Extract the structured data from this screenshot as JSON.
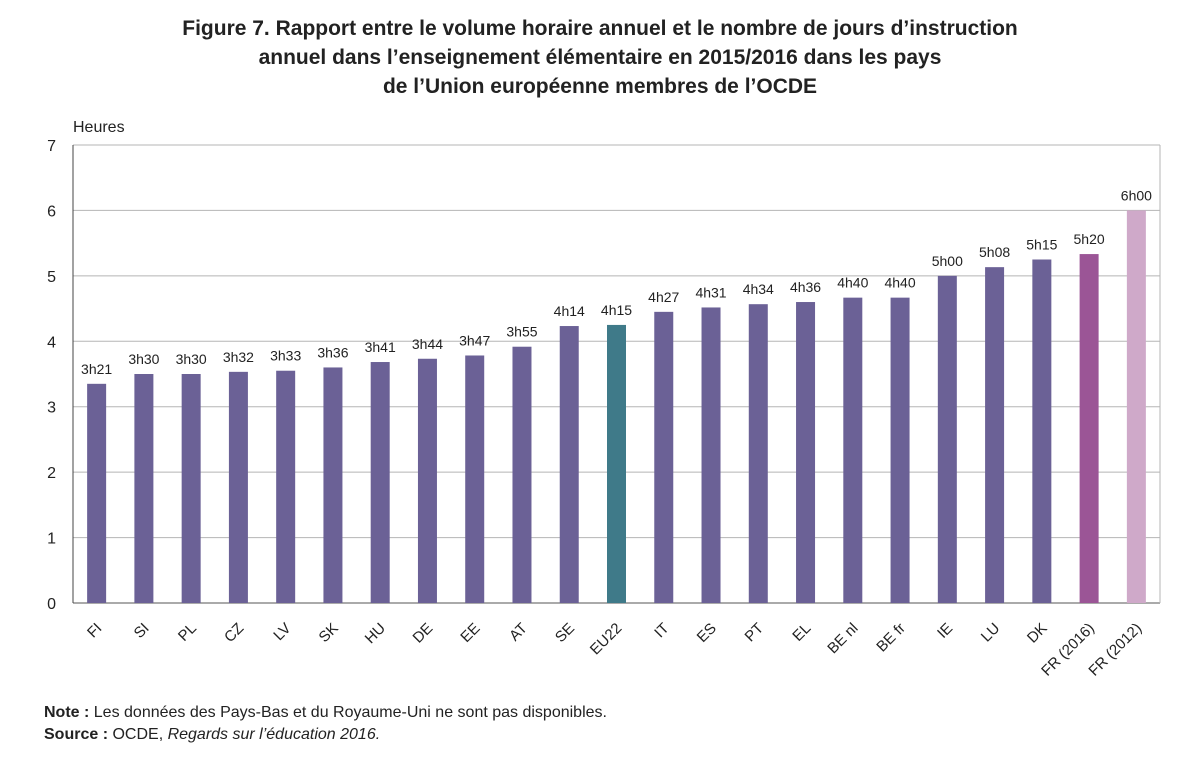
{
  "title_lines": [
    "Figure 7.  Rapport entre le volume horaire annuel et le nombre de jours d’instruction",
    "annuel dans l’enseignement élémentaire en 2015/2016 dans les pays",
    "de l’Union européenne membres de l’OCDE"
  ],
  "notes": {
    "note_label": "Note :",
    "note_text": " Les données des Pays-Bas et du Royaume-Uni ne sont pas disponibles.",
    "source_label": "Source :",
    "source_text": " OCDE, ",
    "source_title": "Regards sur l’éducation 2016."
  },
  "chart_data": {
    "type": "bar",
    "ylabel": "Heures",
    "ylim": [
      0,
      7
    ],
    "yticks": [
      0,
      1,
      2,
      3,
      4,
      5,
      6,
      7
    ],
    "grid": true,
    "categories": [
      "FI",
      "SI",
      "PL",
      "CZ",
      "LV",
      "SK",
      "HU",
      "DE",
      "EE",
      "AT",
      "SE",
      "EU22",
      "IT",
      "ES",
      "PT",
      "EL",
      "BE nl",
      "BE fr",
      "IE",
      "LU",
      "DK",
      "FR (2016)",
      "FR (2012)"
    ],
    "values": [
      3.35,
      3.5,
      3.5,
      3.533,
      3.55,
      3.6,
      3.683,
      3.733,
      3.783,
      3.917,
      4.233,
      4.25,
      4.45,
      4.517,
      4.567,
      4.6,
      4.667,
      4.667,
      5.0,
      5.133,
      5.25,
      5.333,
      6.0
    ],
    "data_labels": [
      "3h21",
      "3h30",
      "3h30",
      "3h32",
      "3h33",
      "3h36",
      "3h41",
      "3h44",
      "3h47",
      "3h55",
      "4h14",
      "4h15",
      "4h27",
      "4h31",
      "4h34",
      "4h36",
      "4h40",
      "4h40",
      "5h00",
      "5h08",
      "5h15",
      "5h20",
      "6h00"
    ],
    "colors": [
      "#6b6196",
      "#6b6196",
      "#6b6196",
      "#6b6196",
      "#6b6196",
      "#6b6196",
      "#6b6196",
      "#6b6196",
      "#6b6196",
      "#6b6196",
      "#6b6196",
      "#3f7a89",
      "#6b6196",
      "#6b6196",
      "#6b6196",
      "#6b6196",
      "#6b6196",
      "#6b6196",
      "#6b6196",
      "#6b6196",
      "#6b6196",
      "#9b5596",
      "#cfa9c9"
    ]
  }
}
